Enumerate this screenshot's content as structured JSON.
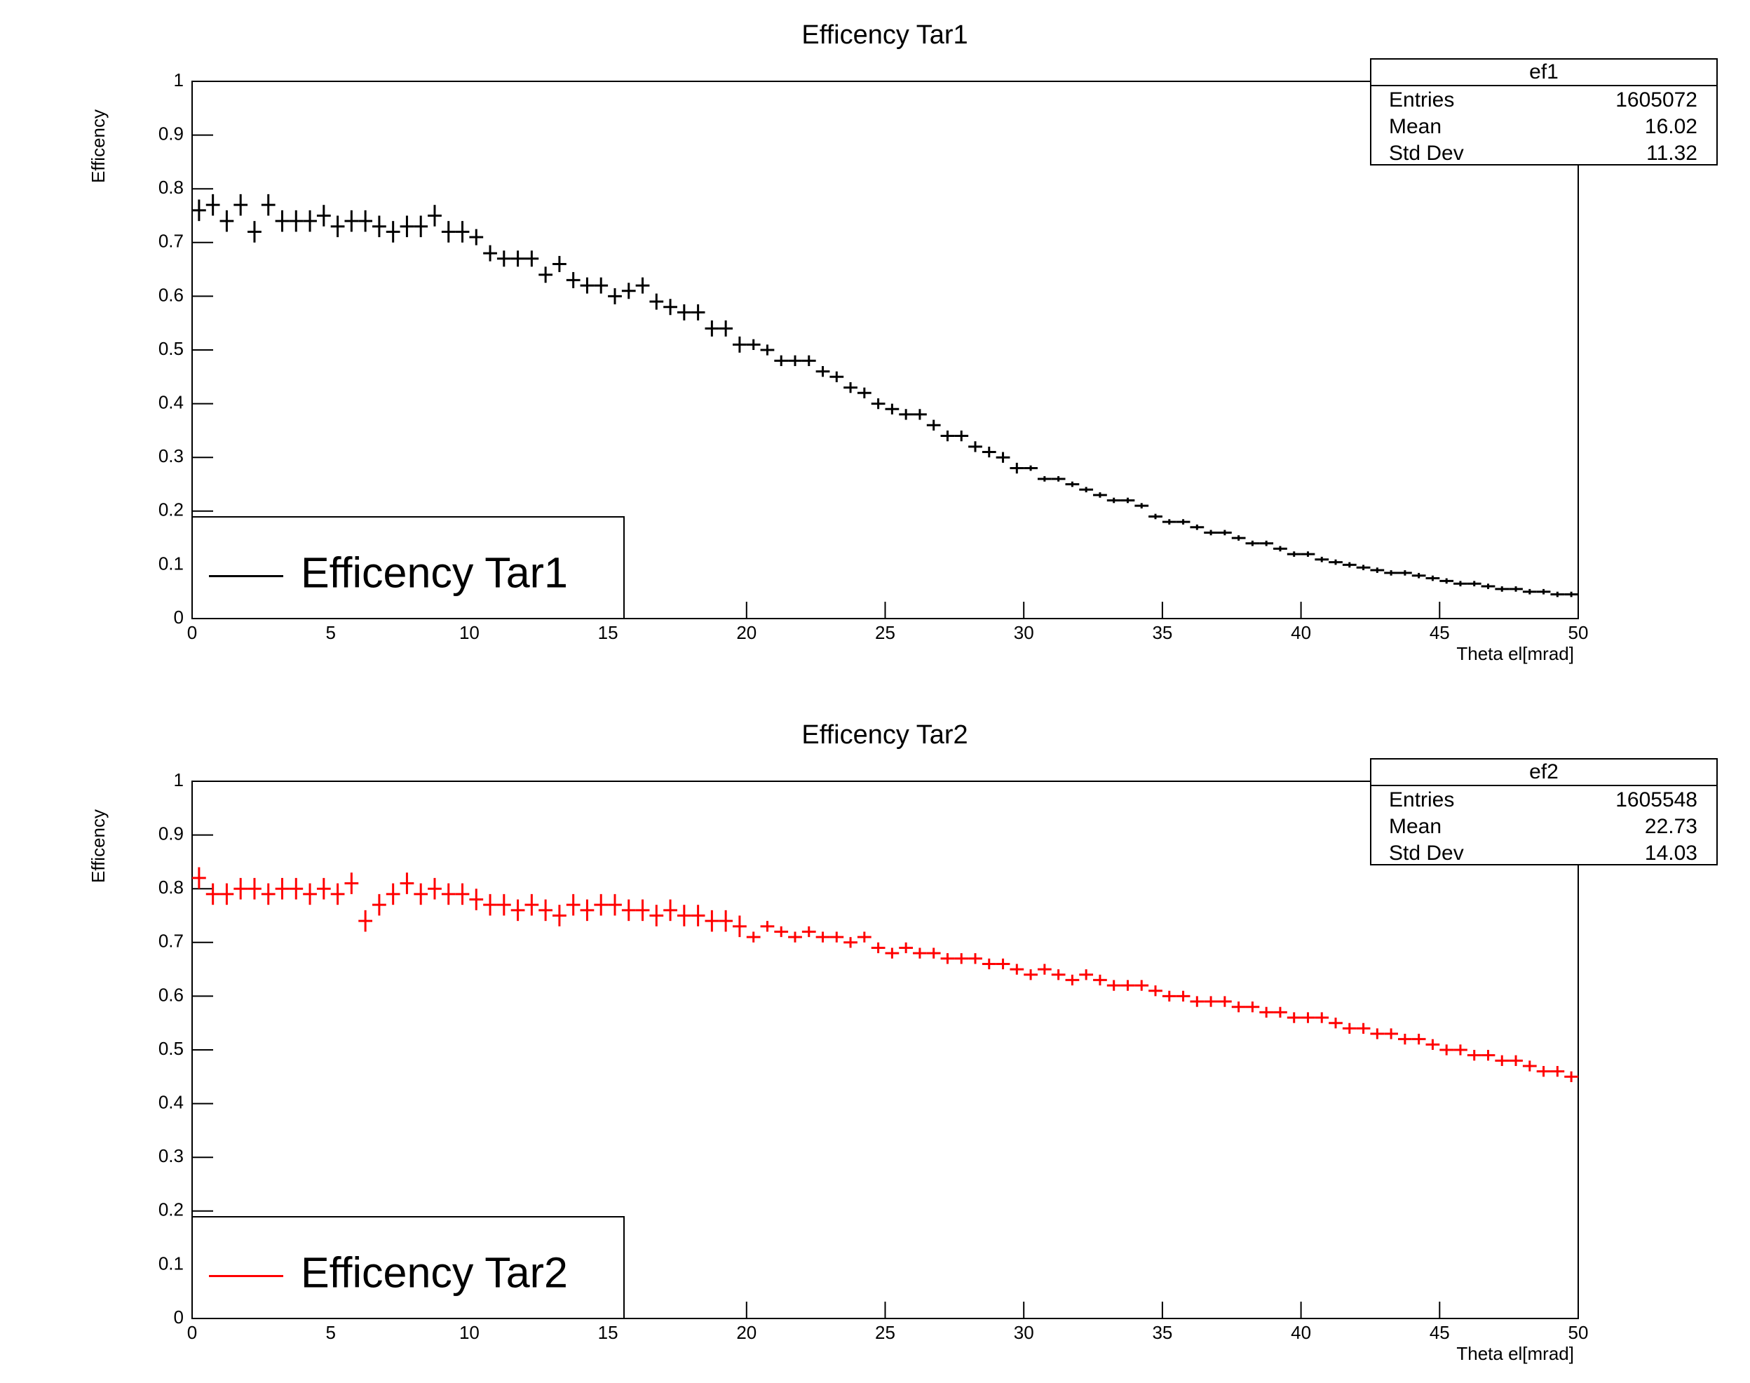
{
  "chart_data": [
    {
      "type": "errorbar",
      "title": "Efficency Tar1",
      "xlabel": "Theta el[mrad]",
      "ylabel": "Efficency",
      "xlim": [
        0,
        50
      ],
      "ylim": [
        0,
        1
      ],
      "xticks": [
        0,
        5,
        10,
        15,
        20,
        25,
        30,
        35,
        40,
        45,
        50
      ],
      "yticks": [
        0,
        0.1,
        0.2,
        0.3,
        0.4,
        0.5,
        0.6,
        0.7,
        0.8,
        0.9,
        1
      ],
      "legend": "lower left",
      "stats": {
        "name": "ef1",
        "rows": [
          [
            "Entries",
            1605072
          ],
          [
            "Mean",
            16.02
          ],
          [
            "Std Dev",
            11.32
          ]
        ]
      },
      "x": [
        0.25,
        0.75,
        1.25,
        1.75,
        2.25,
        2.75,
        3.25,
        3.75,
        4.25,
        4.75,
        5.25,
        5.75,
        6.25,
        6.75,
        7.25,
        7.75,
        8.25,
        8.75,
        9.25,
        9.75,
        10.25,
        10.75,
        11.25,
        11.75,
        12.25,
        12.75,
        13.25,
        13.75,
        14.25,
        14.75,
        15.25,
        15.75,
        16.25,
        16.75,
        17.25,
        17.75,
        18.25,
        18.75,
        19.25,
        19.75,
        20.25,
        20.75,
        21.25,
        21.75,
        22.25,
        22.75,
        23.25,
        23.75,
        24.25,
        24.75,
        25.25,
        25.75,
        26.25,
        26.75,
        27.25,
        27.75,
        28.25,
        28.75,
        29.25,
        29.75,
        30.25,
        30.75,
        31.25,
        31.75,
        32.25,
        32.75,
        33.25,
        33.75,
        34.25,
        34.75,
        35.25,
        35.75,
        36.25,
        36.75,
        37.25,
        37.75,
        38.25,
        38.75,
        39.25,
        39.75,
        40.25,
        40.75,
        41.25,
        41.75,
        42.25,
        42.75,
        43.25,
        43.75,
        44.25,
        44.75,
        45.25,
        45.75,
        46.25,
        46.75,
        47.25,
        47.75,
        48.25,
        48.75,
        49.25,
        49.75
      ],
      "series": [
        {
          "name": "Efficency Tar1",
          "color": "#000000",
          "values": [
            0.76,
            0.77,
            0.74,
            0.77,
            0.72,
            0.77,
            0.74,
            0.74,
            0.74,
            0.75,
            0.73,
            0.74,
            0.74,
            0.73,
            0.72,
            0.73,
            0.73,
            0.75,
            0.72,
            0.72,
            0.71,
            0.68,
            0.67,
            0.67,
            0.67,
            0.64,
            0.66,
            0.63,
            0.62,
            0.62,
            0.6,
            0.61,
            0.62,
            0.59,
            0.58,
            0.57,
            0.57,
            0.54,
            0.54,
            0.51,
            0.51,
            0.5,
            0.48,
            0.48,
            0.48,
            0.46,
            0.45,
            0.43,
            0.42,
            0.4,
            0.39,
            0.38,
            0.38,
            0.36,
            0.34,
            0.34,
            0.32,
            0.31,
            0.3,
            0.28,
            0.28,
            0.26,
            0.26,
            0.25,
            0.24,
            0.23,
            0.22,
            0.22,
            0.21,
            0.19,
            0.18,
            0.18,
            0.17,
            0.16,
            0.16,
            0.15,
            0.14,
            0.14,
            0.13,
            0.12,
            0.12,
            0.11,
            0.105,
            0.1,
            0.095,
            0.09,
            0.085,
            0.085,
            0.08,
            0.075,
            0.07,
            0.065,
            0.065,
            0.06,
            0.055,
            0.055,
            0.05,
            0.05,
            0.045,
            0.045
          ],
          "errors": [
            0.02,
            0.02,
            0.02,
            0.02,
            0.02,
            0.02,
            0.02,
            0.02,
            0.02,
            0.02,
            0.02,
            0.02,
            0.02,
            0.02,
            0.02,
            0.02,
            0.02,
            0.02,
            0.02,
            0.02,
            0.015,
            0.015,
            0.015,
            0.015,
            0.015,
            0.015,
            0.015,
            0.015,
            0.015,
            0.015,
            0.015,
            0.015,
            0.015,
            0.015,
            0.015,
            0.015,
            0.015,
            0.015,
            0.015,
            0.015,
            0.01,
            0.01,
            0.01,
            0.01,
            0.01,
            0.01,
            0.01,
            0.01,
            0.01,
            0.01,
            0.01,
            0.01,
            0.01,
            0.01,
            0.01,
            0.01,
            0.01,
            0.01,
            0.01,
            0.01,
            0.005,
            0.005,
            0.005,
            0.005,
            0.005,
            0.005,
            0.005,
            0.005,
            0.005,
            0.005,
            0.005,
            0.005,
            0.005,
            0.005,
            0.005,
            0.005,
            0.005,
            0.005,
            0.005,
            0.005,
            0.005,
            0.005,
            0.005,
            0.005,
            0.005,
            0.005,
            0.005,
            0.005,
            0.005,
            0.005,
            0.005,
            0.005,
            0.005,
            0.005,
            0.005,
            0.005,
            0.005,
            0.005,
            0.005,
            0.005
          ]
        }
      ]
    },
    {
      "type": "errorbar",
      "title": "Efficency Tar2",
      "xlabel": "Theta el[mrad]",
      "ylabel": "Efficency",
      "xlim": [
        0,
        50
      ],
      "ylim": [
        0,
        1
      ],
      "xticks": [
        0,
        5,
        10,
        15,
        20,
        25,
        30,
        35,
        40,
        45,
        50
      ],
      "yticks": [
        0,
        0.1,
        0.2,
        0.3,
        0.4,
        0.5,
        0.6,
        0.7,
        0.8,
        0.9,
        1
      ],
      "legend": "lower left",
      "stats": {
        "name": "ef2",
        "rows": [
          [
            "Entries",
            1605548
          ],
          [
            "Mean",
            22.73
          ],
          [
            "Std Dev",
            14.03
          ]
        ]
      },
      "x": [
        0.25,
        0.75,
        1.25,
        1.75,
        2.25,
        2.75,
        3.25,
        3.75,
        4.25,
        4.75,
        5.25,
        5.75,
        6.25,
        6.75,
        7.25,
        7.75,
        8.25,
        8.75,
        9.25,
        9.75,
        10.25,
        10.75,
        11.25,
        11.75,
        12.25,
        12.75,
        13.25,
        13.75,
        14.25,
        14.75,
        15.25,
        15.75,
        16.25,
        16.75,
        17.25,
        17.75,
        18.25,
        18.75,
        19.25,
        19.75,
        20.25,
        20.75,
        21.25,
        21.75,
        22.25,
        22.75,
        23.25,
        23.75,
        24.25,
        24.75,
        25.25,
        25.75,
        26.25,
        26.75,
        27.25,
        27.75,
        28.25,
        28.75,
        29.25,
        29.75,
        30.25,
        30.75,
        31.25,
        31.75,
        32.25,
        32.75,
        33.25,
        33.75,
        34.25,
        34.75,
        35.25,
        35.75,
        36.25,
        36.75,
        37.25,
        37.75,
        38.25,
        38.75,
        39.25,
        39.75,
        40.25,
        40.75,
        41.25,
        41.75,
        42.25,
        42.75,
        43.25,
        43.75,
        44.25,
        44.75,
        45.25,
        45.75,
        46.25,
        46.75,
        47.25,
        47.75,
        48.25,
        48.75,
        49.25,
        49.75
      ],
      "series": [
        {
          "name": "Efficency Tar2",
          "color": "#ff0000",
          "values": [
            0.82,
            0.79,
            0.79,
            0.8,
            0.8,
            0.79,
            0.8,
            0.8,
            0.79,
            0.8,
            0.79,
            0.81,
            0.74,
            0.77,
            0.79,
            0.81,
            0.79,
            0.8,
            0.79,
            0.79,
            0.78,
            0.77,
            0.77,
            0.76,
            0.77,
            0.76,
            0.75,
            0.77,
            0.76,
            0.77,
            0.77,
            0.76,
            0.76,
            0.75,
            0.76,
            0.75,
            0.75,
            0.74,
            0.74,
            0.73,
            0.71,
            0.73,
            0.72,
            0.71,
            0.72,
            0.71,
            0.71,
            0.7,
            0.71,
            0.69,
            0.68,
            0.69,
            0.68,
            0.68,
            0.67,
            0.67,
            0.67,
            0.66,
            0.66,
            0.65,
            0.64,
            0.65,
            0.64,
            0.63,
            0.64,
            0.63,
            0.62,
            0.62,
            0.62,
            0.61,
            0.6,
            0.6,
            0.59,
            0.59,
            0.59,
            0.58,
            0.58,
            0.57,
            0.57,
            0.56,
            0.56,
            0.56,
            0.55,
            0.54,
            0.54,
            0.53,
            0.53,
            0.52,
            0.52,
            0.51,
            0.5,
            0.5,
            0.49,
            0.49,
            0.48,
            0.48,
            0.47,
            0.46,
            0.46,
            0.45
          ],
          "errors": [
            0.02,
            0.02,
            0.02,
            0.02,
            0.02,
            0.02,
            0.02,
            0.02,
            0.02,
            0.02,
            0.02,
            0.02,
            0.02,
            0.02,
            0.02,
            0.02,
            0.02,
            0.02,
            0.02,
            0.02,
            0.02,
            0.02,
            0.02,
            0.02,
            0.02,
            0.02,
            0.02,
            0.02,
            0.02,
            0.02,
            0.02,
            0.02,
            0.02,
            0.02,
            0.02,
            0.02,
            0.02,
            0.02,
            0.02,
            0.02,
            0.01,
            0.01,
            0.01,
            0.01,
            0.01,
            0.01,
            0.01,
            0.01,
            0.01,
            0.01,
            0.01,
            0.01,
            0.01,
            0.01,
            0.01,
            0.01,
            0.01,
            0.01,
            0.01,
            0.01,
            0.01,
            0.01,
            0.01,
            0.01,
            0.01,
            0.01,
            0.01,
            0.01,
            0.01,
            0.01,
            0.01,
            0.01,
            0.01,
            0.01,
            0.01,
            0.01,
            0.01,
            0.01,
            0.01,
            0.01,
            0.01,
            0.01,
            0.01,
            0.01,
            0.01,
            0.01,
            0.01,
            0.01,
            0.01,
            0.01,
            0.01,
            0.01,
            0.01,
            0.01,
            0.01,
            0.01,
            0.01,
            0.01,
            0.01,
            0.01
          ]
        }
      ]
    }
  ]
}
